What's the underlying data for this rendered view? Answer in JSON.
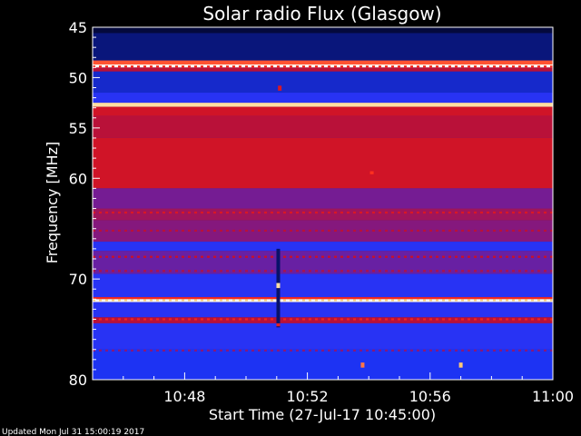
{
  "chart_data": {
    "type": "heatmap",
    "title": "Solar radio Flux (Glasgow)",
    "xlabel": "Start Time (27-Jul-17 10:45:00)",
    "ylabel": "Frequency [MHz]",
    "x_ticks": [
      "10:48",
      "10:52",
      "10:56",
      "11:00"
    ],
    "x_tick_minutes": [
      3,
      7,
      11,
      15
    ],
    "xlim_minutes": [
      0,
      15
    ],
    "y_ticks": [
      45,
      50,
      55,
      60,
      70,
      80
    ],
    "ylim": [
      80,
      45
    ],
    "colormap": [
      "#000010",
      "#0b1a8f",
      "#1f36ff",
      "#7a1a8c",
      "#c40f2a",
      "#ff2a1a",
      "#ffd07a",
      "#ffffff"
    ],
    "bands": [
      {
        "f": [
          45.0,
          45.6
        ],
        "level": 0.05
      },
      {
        "f": [
          45.6,
          48.3
        ],
        "level": 0.12
      },
      {
        "f": [
          48.3,
          48.7
        ],
        "level": 0.75
      },
      {
        "f": [
          48.7,
          49.0
        ],
        "level": 0.98
      },
      {
        "f": [
          49.0,
          49.4
        ],
        "level": 0.55
      },
      {
        "f": [
          49.4,
          51.5
        ],
        "level": 0.22
      },
      {
        "f": [
          51.5,
          52.5
        ],
        "level": 0.3
      },
      {
        "f": [
          52.5,
          52.9
        ],
        "level": 0.9
      },
      {
        "f": [
          52.9,
          53.8
        ],
        "level": 0.6
      },
      {
        "f": [
          53.8,
          56.0
        ],
        "level": 0.55
      },
      {
        "f": [
          56.0,
          61.0
        ],
        "level": 0.6
      },
      {
        "f": [
          61.0,
          63.0
        ],
        "level": 0.42
      },
      {
        "f": [
          63.0,
          64.2
        ],
        "level": 0.5
      },
      {
        "f": [
          64.2,
          66.3
        ],
        "level": 0.45
      },
      {
        "f": [
          66.3,
          67.2
        ],
        "level": 0.3
      },
      {
        "f": [
          67.2,
          69.5
        ],
        "level": 0.4
      },
      {
        "f": [
          69.5,
          71.8
        ],
        "level": 0.3
      },
      {
        "f": [
          71.8,
          72.0
        ],
        "level": 0.7
      },
      {
        "f": [
          72.0,
          72.3
        ],
        "level": 0.98
      },
      {
        "f": [
          72.3,
          73.8
        ],
        "level": 0.3
      },
      {
        "f": [
          73.8,
          74.4
        ],
        "level": 0.55
      },
      {
        "f": [
          74.4,
          77.0
        ],
        "level": 0.3
      },
      {
        "f": [
          77.0,
          80.0
        ],
        "level": 0.27
      }
    ],
    "dotted_lines": [
      {
        "f": 48.9,
        "level": 0.7
      },
      {
        "f": 63.4,
        "level": 0.62
      },
      {
        "f": 65.2,
        "level": 0.55
      },
      {
        "f": 67.8,
        "level": 0.58
      },
      {
        "f": 69.2,
        "level": 0.52
      },
      {
        "f": 72.1,
        "level": 0.85
      },
      {
        "f": 74.0,
        "level": 0.68
      },
      {
        "f": 77.1,
        "level": 0.45
      }
    ],
    "features": [
      {
        "t": 6.05,
        "f": [
          67.0,
          74.8
        ],
        "level": 0.1
      },
      {
        "t": 6.05,
        "f": [
          70.4,
          70.9
        ],
        "level": 0.9
      },
      {
        "t": 6.05,
        "f": [
          74.4,
          74.7
        ],
        "level": 0.65
      },
      {
        "t": 6.1,
        "f": [
          50.8,
          51.3
        ],
        "level": 0.62
      },
      {
        "t": 9.1,
        "f": [
          59.3,
          59.6
        ],
        "level": 0.72
      },
      {
        "t": 8.8,
        "f": [
          78.3,
          78.8
        ],
        "level": 0.78
      },
      {
        "t": 12.0,
        "f": [
          78.3,
          78.8
        ],
        "level": 0.85
      }
    ]
  },
  "footer": {
    "updated": "Updated Mon Jul 31 15:00:19 2017"
  }
}
